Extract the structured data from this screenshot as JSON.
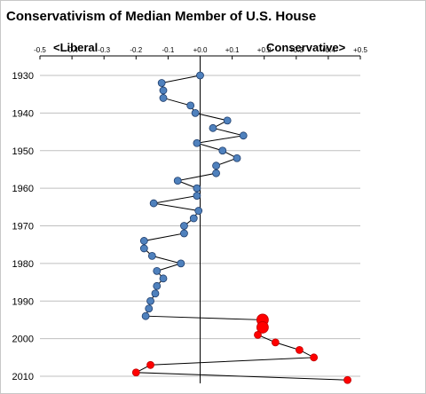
{
  "chart_data": {
    "type": "scatter",
    "title": "Conservativism of Median Member of U.S. House",
    "direction_labels": {
      "left": "<Liberal",
      "right": "Conservative>"
    },
    "xlim": [
      -0.5,
      0.5
    ],
    "x_ticks": [
      -0.5,
      -0.4,
      -0.3,
      -0.2,
      -0.1,
      0.0,
      0.1,
      0.2,
      0.3,
      0.4,
      0.5
    ],
    "x_tick_labels": [
      "-0.5",
      "-0.4",
      "-0.3",
      "-0.2",
      "-0.1",
      "+0.0",
      "+0.1",
      "+0.2",
      "+0.3",
      "+0.4",
      "+0.5"
    ],
    "ylim": [
      1930,
      2010
    ],
    "y_ticks": [
      1930,
      1940,
      1950,
      1960,
      1970,
      1980,
      1990,
      2000,
      2010
    ],
    "y_reversed": true,
    "grid": true,
    "connected": true,
    "colors": {
      "democrat_median": "#4f81bd",
      "republican_median": "#ff0000",
      "line": "#000000",
      "grid": "#bfbfbf"
    },
    "points": [
      {
        "year": 1930,
        "value": 0.0,
        "party": "republican_median",
        "style": "blue"
      },
      {
        "year": 1932,
        "value": -0.12,
        "style": "blue"
      },
      {
        "year": 1934,
        "value": -0.115,
        "style": "blue"
      },
      {
        "year": 1936,
        "value": -0.115,
        "style": "blue"
      },
      {
        "year": 1938,
        "value": -0.03,
        "style": "blue"
      },
      {
        "year": 1940,
        "value": -0.015,
        "style": "blue"
      },
      {
        "year": 1942,
        "value": 0.085,
        "style": "blue"
      },
      {
        "year": 1944,
        "value": 0.04,
        "style": "blue"
      },
      {
        "year": 1946,
        "value": 0.135,
        "style": "blue"
      },
      {
        "year": 1948,
        "value": -0.01,
        "style": "blue"
      },
      {
        "year": 1950,
        "value": 0.07,
        "style": "blue"
      },
      {
        "year": 1952,
        "value": 0.115,
        "style": "blue"
      },
      {
        "year": 1954,
        "value": 0.05,
        "style": "blue"
      },
      {
        "year": 1956,
        "value": 0.05,
        "style": "blue"
      },
      {
        "year": 1958,
        "value": -0.07,
        "style": "blue"
      },
      {
        "year": 1960,
        "value": -0.01,
        "style": "blue"
      },
      {
        "year": 1962,
        "value": -0.01,
        "style": "blue"
      },
      {
        "year": 1964,
        "value": -0.145,
        "style": "blue"
      },
      {
        "year": 1966,
        "value": -0.005,
        "style": "blue"
      },
      {
        "year": 1968,
        "value": -0.02,
        "style": "blue"
      },
      {
        "year": 1970,
        "value": -0.05,
        "style": "blue"
      },
      {
        "year": 1972,
        "value": -0.05,
        "style": "blue"
      },
      {
        "year": 1974,
        "value": -0.175,
        "style": "blue"
      },
      {
        "year": 1976,
        "value": -0.175,
        "style": "blue"
      },
      {
        "year": 1978,
        "value": -0.15,
        "style": "blue"
      },
      {
        "year": 1980,
        "value": -0.06,
        "style": "blue"
      },
      {
        "year": 1982,
        "value": -0.135,
        "style": "blue"
      },
      {
        "year": 1984,
        "value": -0.115,
        "style": "blue"
      },
      {
        "year": 1986,
        "value": -0.135,
        "style": "blue"
      },
      {
        "year": 1988,
        "value": -0.14,
        "style": "blue"
      },
      {
        "year": 1990,
        "value": -0.155,
        "style": "blue"
      },
      {
        "year": 1992,
        "value": -0.16,
        "style": "blue"
      },
      {
        "year": 1994,
        "value": -0.17,
        "style": "blue"
      },
      {
        "year": 1995,
        "value": 0.195,
        "style": "red-large"
      },
      {
        "year": 1997,
        "value": 0.195,
        "style": "red-large"
      },
      {
        "year": 1999,
        "value": 0.18,
        "style": "red"
      },
      {
        "year": 2001,
        "value": 0.235,
        "style": "red"
      },
      {
        "year": 2003,
        "value": 0.31,
        "style": "red"
      },
      {
        "year": 2005,
        "value": 0.355,
        "style": "red"
      },
      {
        "year": 2007,
        "value": -0.155,
        "style": "red"
      },
      {
        "year": 2009,
        "value": -0.2,
        "style": "red"
      },
      {
        "year": 2011,
        "value": 0.46,
        "style": "red"
      }
    ]
  }
}
